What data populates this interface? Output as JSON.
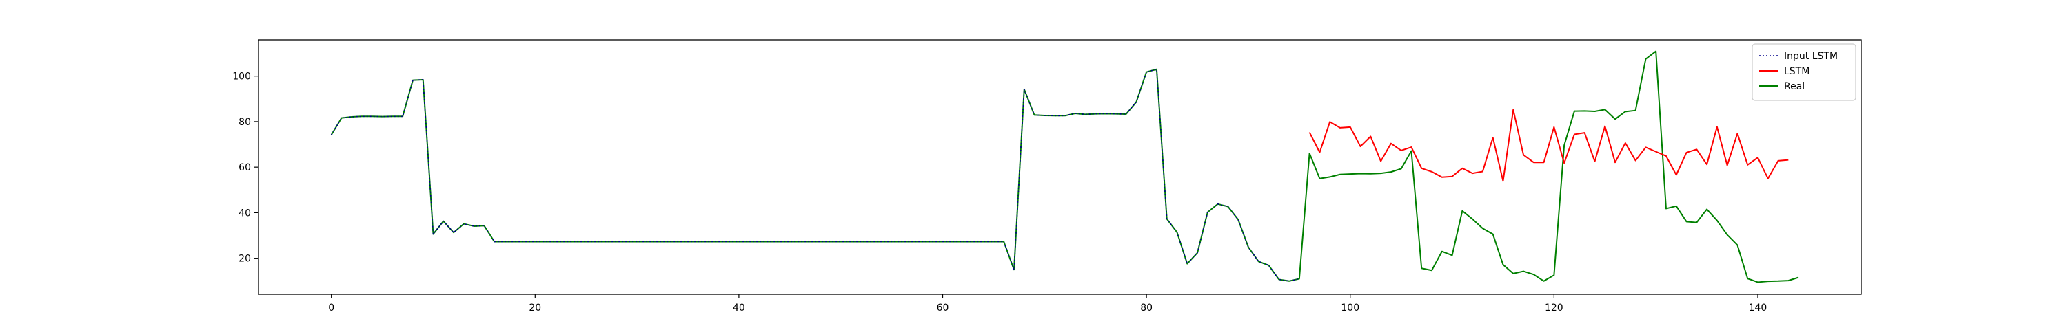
{
  "chart_data": {
    "type": "line",
    "title": "",
    "xlabel": "",
    "ylabel": "",
    "xlim": [
      -7.15,
      150.15
    ],
    "ylim": [
      4.2,
      115.9
    ],
    "xticks": [
      0,
      20,
      40,
      60,
      80,
      100,
      120,
      140
    ],
    "yticks": [
      20,
      40,
      60,
      80,
      100
    ],
    "legend_position": "top-right",
    "legend": [
      "Input LSTM",
      "LSTM",
      "Real"
    ],
    "series": [
      {
        "name": "Input LSTM",
        "color": "#00008b",
        "style": "dotted",
        "x_start": 0,
        "values": [
          74.2,
          81.6,
          82.1,
          82.3,
          82.3,
          82.2,
          82.3,
          82.3,
          98.2,
          98.4,
          30.6,
          36.3,
          31.3,
          35.1,
          34.1,
          34.3,
          27.3,
          27.3,
          27.3,
          27.3,
          27.3,
          27.3,
          27.3,
          27.3,
          27.3,
          27.3,
          27.3,
          27.3,
          27.3,
          27.3,
          27.3,
          27.3,
          27.3,
          27.3,
          27.3,
          27.3,
          27.3,
          27.3,
          27.3,
          27.3,
          27.3,
          27.3,
          27.3,
          27.3,
          27.3,
          27.3,
          27.3,
          27.3,
          27.3,
          27.3,
          27.3,
          27.3,
          27.3,
          27.3,
          27.3,
          27.3,
          27.3,
          27.3,
          27.3,
          27.3,
          27.3,
          27.3,
          27.3,
          27.3,
          27.3,
          27.3,
          27.3,
          15.0,
          94.2,
          82.9,
          82.7,
          82.6,
          82.6,
          83.6,
          83.2,
          83.4,
          83.5,
          83.4,
          83.3,
          88.6,
          101.8,
          103.0,
          37.3,
          31.4,
          17.6,
          22.4,
          40.2,
          43.8,
          42.7,
          37.0,
          24.9,
          18.6,
          16.9,
          10.7,
          10.0,
          11.0
        ]
      },
      {
        "name": "LSTM",
        "color": "#ff0000",
        "style": "solid",
        "x_start": 96,
        "values": [
          75.3,
          66.5,
          79.9,
          77.3,
          77.6,
          69.1,
          73.5,
          62.6,
          70.4,
          67.3,
          68.8,
          59.5,
          58.0,
          55.6,
          55.9,
          59.5,
          57.3,
          58.1,
          73.0,
          53.9,
          85.2,
          65.4,
          62.1,
          62.1,
          77.6,
          61.8,
          74.4,
          75.1,
          62.5,
          78.0,
          62.1,
          70.6,
          62.9,
          68.7,
          66.8,
          64.9,
          56.6,
          66.4,
          67.8,
          61.2,
          77.7,
          60.8,
          74.8,
          61.0,
          64.2,
          55.0,
          62.8,
          63.2
        ]
      },
      {
        "name": "Real",
        "color": "#008000",
        "style": "solid",
        "x_start": 0,
        "values": [
          74.2,
          81.6,
          82.1,
          82.3,
          82.3,
          82.2,
          82.3,
          82.3,
          98.2,
          98.4,
          30.6,
          36.3,
          31.3,
          35.1,
          34.1,
          34.3,
          27.3,
          27.3,
          27.3,
          27.3,
          27.3,
          27.3,
          27.3,
          27.3,
          27.3,
          27.3,
          27.3,
          27.3,
          27.3,
          27.3,
          27.3,
          27.3,
          27.3,
          27.3,
          27.3,
          27.3,
          27.3,
          27.3,
          27.3,
          27.3,
          27.3,
          27.3,
          27.3,
          27.3,
          27.3,
          27.3,
          27.3,
          27.3,
          27.3,
          27.3,
          27.3,
          27.3,
          27.3,
          27.3,
          27.3,
          27.3,
          27.3,
          27.3,
          27.3,
          27.3,
          27.3,
          27.3,
          27.3,
          27.3,
          27.3,
          27.3,
          27.3,
          15.0,
          94.2,
          82.9,
          82.7,
          82.6,
          82.6,
          83.6,
          83.2,
          83.4,
          83.5,
          83.4,
          83.3,
          88.6,
          101.8,
          103.0,
          37.3,
          31.4,
          17.6,
          22.4,
          40.2,
          43.8,
          42.7,
          37.0,
          24.9,
          18.6,
          16.9,
          10.7,
          10.0,
          11.0,
          66.1,
          55.0,
          55.7,
          56.8,
          57.0,
          57.2,
          57.1,
          57.3,
          57.9,
          59.3,
          67.1,
          15.6,
          14.7,
          23.0,
          21.3,
          40.8,
          37.2,
          33.1,
          30.6,
          17.2,
          13.3,
          14.3,
          12.9,
          10.0,
          12.6,
          69.6,
          84.6,
          84.7,
          84.5,
          85.3,
          81.1,
          84.4,
          84.9,
          107.5,
          110.9,
          41.8,
          42.9,
          36.1,
          35.7,
          41.5,
          36.6,
          30.3,
          25.8,
          11.1,
          9.5,
          9.9,
          10.0,
          10.2,
          11.6
        ]
      }
    ]
  }
}
